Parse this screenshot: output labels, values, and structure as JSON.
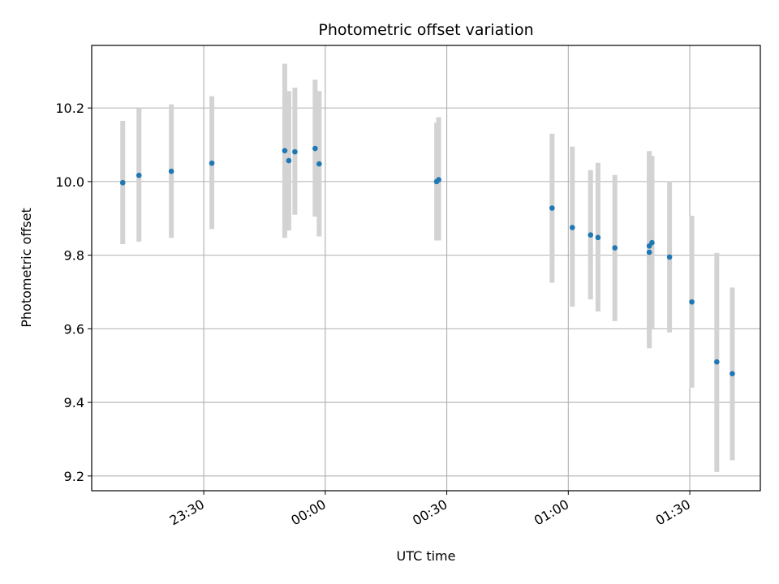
{
  "chart_data": {
    "type": "scatter",
    "title": "Photometric offset variation",
    "xlabel": "UTC time",
    "ylabel": "Photometric offset",
    "xlim": [
      "23:02:20",
      "01:47:25"
    ],
    "ylim": [
      9.16,
      10.37
    ],
    "grid": true,
    "x_ticks": [
      "23:30",
      "00:00",
      "00:30",
      "01:00",
      "01:30"
    ],
    "y_ticks": [
      9.2,
      9.4,
      9.6,
      9.8,
      10.0,
      10.2
    ],
    "colors": {
      "points": "#1f77b4",
      "error_bars": "#d3d3d3",
      "grid": "#b0b0b0"
    },
    "points": [
      {
        "x": "23:10:00",
        "y": 9.997,
        "yerr_low": 9.83,
        "yerr_high": 10.165
      },
      {
        "x": "23:14:00",
        "y": 10.017,
        "yerr_low": 9.837,
        "yerr_high": 10.2
      },
      {
        "x": "23:22:00",
        "y": 10.028,
        "yerr_low": 9.847,
        "yerr_high": 10.21
      },
      {
        "x": "23:32:00",
        "y": 10.05,
        "yerr_low": 9.871,
        "yerr_high": 10.232
      },
      {
        "x": "23:50:00",
        "y": 10.084,
        "yerr_low": 9.847,
        "yerr_high": 10.32
      },
      {
        "x": "23:51:00",
        "y": 10.057,
        "yerr_low": 9.867,
        "yerr_high": 10.246
      },
      {
        "x": "23:52:30",
        "y": 10.081,
        "yerr_low": 9.91,
        "yerr_high": 10.255
      },
      {
        "x": "23:57:30",
        "y": 10.09,
        "yerr_low": 9.905,
        "yerr_high": 10.277
      },
      {
        "x": "23:58:30",
        "y": 10.048,
        "yerr_low": 9.851,
        "yerr_high": 10.246
      },
      {
        "x": "00:27:30",
        "y": 10.0,
        "yerr_low": 9.84,
        "yerr_high": 10.16
      },
      {
        "x": "00:28:00",
        "y": 10.005,
        "yerr_low": 9.84,
        "yerr_high": 10.175
      },
      {
        "x": "00:56:00",
        "y": 9.928,
        "yerr_low": 9.725,
        "yerr_high": 10.13
      },
      {
        "x": "01:01:00",
        "y": 9.875,
        "yerr_low": 9.66,
        "yerr_high": 10.095
      },
      {
        "x": "01:05:30",
        "y": 9.855,
        "yerr_low": 9.68,
        "yerr_high": 10.031
      },
      {
        "x": "01:07:20",
        "y": 9.848,
        "yerr_low": 9.647,
        "yerr_high": 10.051
      },
      {
        "x": "01:11:30",
        "y": 9.82,
        "yerr_low": 9.621,
        "yerr_high": 10.018
      },
      {
        "x": "01:20:00",
        "y": 9.825,
        "yerr_low": 9.567,
        "yerr_high": 10.083
      },
      {
        "x": "01:20:00",
        "y": 9.808,
        "yerr_low": 9.547,
        "yerr_high": 10.07
      },
      {
        "x": "01:20:40",
        "y": 9.834,
        "yerr_low": 9.598,
        "yerr_high": 10.07
      },
      {
        "x": "01:25:00",
        "y": 9.795,
        "yerr_low": 9.59,
        "yerr_high": 10.001
      },
      {
        "x": "01:30:30",
        "y": 9.673,
        "yerr_low": 9.44,
        "yerr_high": 9.907
      },
      {
        "x": "01:36:40",
        "y": 9.51,
        "yerr_low": 9.211,
        "yerr_high": 9.806
      },
      {
        "x": "01:40:30",
        "y": 9.478,
        "yerr_low": 9.243,
        "yerr_high": 9.712
      }
    ]
  }
}
